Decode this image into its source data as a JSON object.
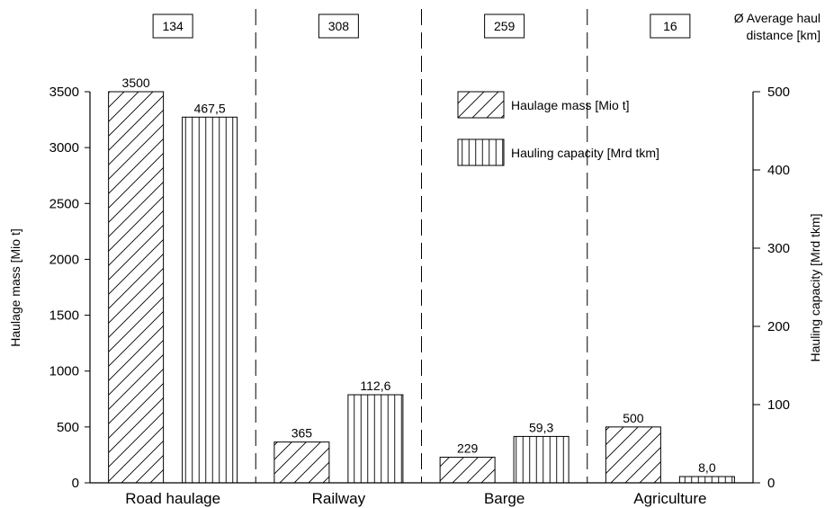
{
  "chart_data": {
    "type": "bar",
    "categories": [
      "Road haulage",
      "Railway",
      "Barge",
      "Agriculture"
    ],
    "series": [
      {
        "name": "Haulage mass [Mio t]",
        "axis": "left",
        "pattern": "diagonal",
        "values": [
          3500,
          365,
          229,
          500
        ],
        "labels": [
          "3500",
          "365",
          "229",
          "500"
        ]
      },
      {
        "name": "Hauling capacity [Mrd tkm]",
        "axis": "right",
        "pattern": "vertical",
        "values": [
          467.5,
          112.6,
          59.3,
          8.0
        ],
        "labels": [
          "467,5",
          "112,6",
          "59,3",
          "8,0"
        ]
      }
    ],
    "average_haul_distance": {
      "label_line1": "Ø Average haul",
      "label_line2": "distance [km]",
      "values": [
        "134",
        "308",
        "259",
        "16"
      ]
    },
    "ylabel": "Haulage mass [Mio t]",
    "ylabel_right": "Hauling capacity [Mrd tkm]",
    "ylim": [
      0,
      3500
    ],
    "ylim_right": [
      0,
      500
    ],
    "yticks": [
      "0",
      "500",
      "1000",
      "1500",
      "2000",
      "2500",
      "3000",
      "3500"
    ],
    "yticks_right": [
      "0",
      "100",
      "200",
      "300",
      "400",
      "500"
    ],
    "legend_position": "top-right",
    "grid": false,
    "colors": {
      "bar_fill": "#ffffff",
      "stroke": "#000000"
    }
  }
}
